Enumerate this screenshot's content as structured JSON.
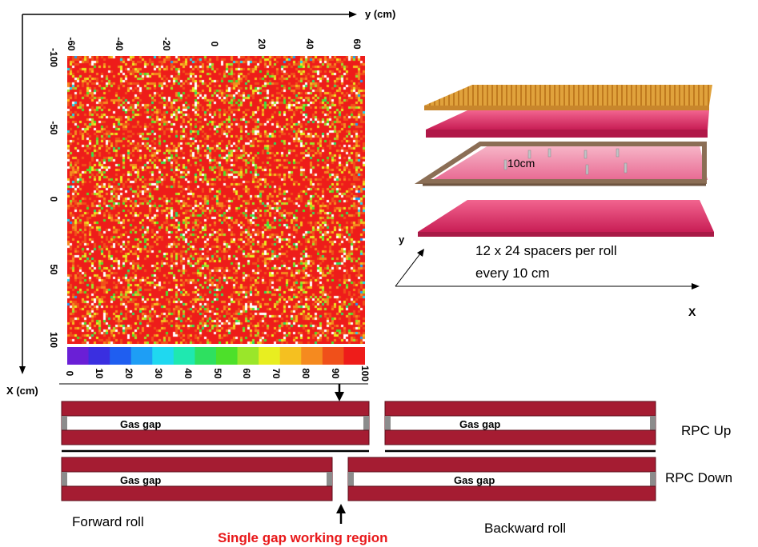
{
  "axes": {
    "y_axis_label": "y (cm)",
    "x_axis_label": "X (cm)"
  },
  "heatmap": {
    "top_ticks": [
      "-60",
      "-40",
      "-20",
      "0",
      "20",
      "40",
      "60"
    ],
    "left_ticks": [
      "-100",
      "-50",
      "0",
      "50",
      "100"
    ],
    "colorbar_ticks": [
      "0",
      "10",
      "20",
      "30",
      "40",
      "50",
      "60",
      "70",
      "80",
      "90",
      "100"
    ],
    "colors": [
      "#6a1fd6",
      "#3a2fe0",
      "#1f5ef0",
      "#1e9ef5",
      "#1fd8f0",
      "#1fe8b0",
      "#2ee060",
      "#4de02a",
      "#9ae62a",
      "#e8ee20",
      "#f5c020",
      "#f58a1f",
      "#f0501a",
      "#ee1c1a"
    ]
  },
  "illustration": {
    "spacer_label": "10cm",
    "spacers_text_line1": "12 x 24 spacers per roll",
    "spacers_text_line2": "every 10 cm",
    "axis_y": "y",
    "axis_x": "X"
  },
  "gaps": {
    "gas_gap": "Gas gap",
    "rpc_up": "RPC Up",
    "rpc_down": "RPC Down",
    "forward_roll": "Forward roll",
    "backward_roll": "Backward roll",
    "single_gap": "Single gap working region"
  },
  "chart_data": {
    "type": "heatmap",
    "xlabel": "y (cm)",
    "ylabel": "X (cm)",
    "xlim": [
      -60,
      60
    ],
    "ylim": [
      -100,
      100
    ],
    "colorbar_range": [
      0,
      100
    ]
  }
}
